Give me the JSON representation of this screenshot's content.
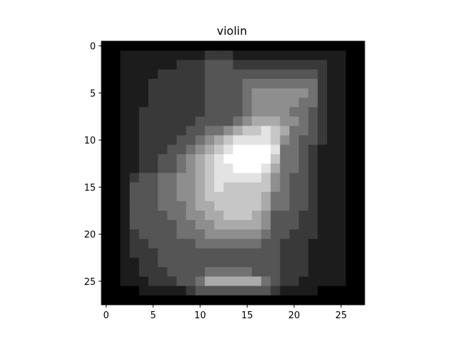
{
  "chart_data": {
    "type": "heatmap",
    "title": "violin",
    "xlabel": "",
    "ylabel": "",
    "colormap": "gray",
    "value_range": [
      0,
      1
    ],
    "xlim": [
      -0.5,
      27.5
    ],
    "ylim": [
      27.5,
      -0.5
    ],
    "x_ticks": [
      0,
      5,
      10,
      15,
      20,
      25
    ],
    "y_ticks": [
      0,
      5,
      10,
      15,
      20,
      25
    ],
    "x_tick_labels": [
      "0",
      "5",
      "10",
      "15",
      "20",
      "25"
    ],
    "y_tick_labels": [
      "0",
      "5",
      "10",
      "15",
      "20",
      "25"
    ],
    "grid": false,
    "legend": "none",
    "colors": {
      "background": "#ffffff",
      "axis": "#000000"
    },
    "rows": [
      "0000000000000000000000000000",
      "0011111111122211111111111100",
      "0011111122233322222222221100",
      "0011112222233333333333321100",
      "0011122222233334444444421100",
      "0011122222233334555555421100",
      "0011122222233334555554421100",
      "0011222222233334555544321100",
      "0011222222333345666554321100",
      "0011222223344567787644321100",
      "0011222233456788887543321100",
      "0011222334567899998443211100",
      "0011223345678999997443211100",
      "0011223345678899986443211100",
      "0012334455678888875433211100",
      "0013334455678777775433211100",
      "0013334455677777764433211100",
      "0013334445667777764433211100",
      "0013333445566777653332211100",
      "0013333344556666653332211100",
      "0012333344455555543322211100",
      "0012233333444444433222111100",
      "0012223333333333333222111100",
      "0011223333333333333222111100",
      "0011222333344444333222111100",
      "0011122233466666643221111100",
      "0000111112333333332111100000",
      "0000000000000000000000000000"
    ]
  }
}
